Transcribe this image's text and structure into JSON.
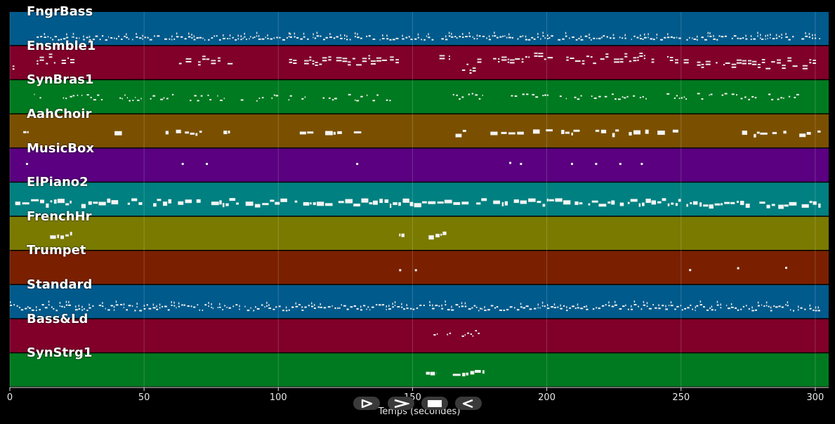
{
  "timeline": {
    "xlabel": "Temps (secondes)",
    "x_max": 305,
    "ticks": [
      {
        "value": 0,
        "label": "0"
      },
      {
        "value": 50,
        "label": "50"
      },
      {
        "value": 100,
        "label": "100"
      },
      {
        "value": 150,
        "label": "150"
      },
      {
        "value": 200,
        "label": "200"
      },
      {
        "value": 250,
        "label": "250"
      },
      {
        "value": 300,
        "label": "300"
      }
    ]
  },
  "tracks": [
    {
      "name": "FngrBass",
      "color": "#005a8c",
      "segments": [
        [
          10,
          250,
          0.7,
          0.02
        ],
        [
          252,
          302,
          0.7,
          0.02
        ]
      ],
      "density": 0.9,
      "kind": "dense"
    },
    {
      "name": "Ensmble1",
      "color": "#80002a",
      "segments": [
        [
          1,
          3,
          0.45,
          0.08
        ],
        [
          10,
          25,
          0.38,
          0.04
        ],
        [
          63,
          83,
          0.38,
          0.04
        ],
        [
          104,
          145,
          0.4,
          0.04
        ],
        [
          160,
          164,
          0.38,
          0.03
        ],
        [
          166,
          177,
          0.55,
          0.06
        ],
        [
          180,
          249,
          0.35,
          0.04
        ],
        [
          251,
          302,
          0.48,
          0.04
        ]
      ],
      "density": 0.75,
      "kind": "chord"
    },
    {
      "name": "SynBras1",
      "color": "#007a20",
      "segments": [
        [
          8,
          12,
          0.42,
          0.03
        ],
        [
          17,
          61,
          0.45,
          0.03
        ],
        [
          67,
          80,
          0.45,
          0.03
        ],
        [
          86,
          122,
          0.46,
          0.03
        ],
        [
          126,
          142,
          0.45,
          0.03
        ],
        [
          165,
          188,
          0.4,
          0.03
        ],
        [
          188,
          294,
          0.42,
          0.03
        ]
      ],
      "density": 0.6,
      "kind": "sparse"
    },
    {
      "name": "AahChoir",
      "color": "#7a5000",
      "segments": [
        [
          5,
          7,
          0.45,
          0.0
        ],
        [
          39,
          42,
          0.45,
          0.0
        ],
        [
          58,
          82,
          0.45,
          0.02
        ],
        [
          99,
          102,
          0.45,
          0.0
        ],
        [
          108,
          142,
          0.45,
          0.02
        ],
        [
          166,
          172,
          0.45,
          0.03
        ],
        [
          179,
          249,
          0.45,
          0.02
        ],
        [
          270,
          302,
          0.48,
          0.02
        ]
      ],
      "density": 0.6,
      "kind": "block"
    },
    {
      "name": "MusicBox",
      "color": "#5a0080",
      "segments": [
        [
          6,
          8,
          0.38,
          0.0
        ],
        [
          64,
          65,
          0.38,
          0.0
        ],
        [
          73,
          74,
          0.38,
          0.0
        ],
        [
          129,
          130,
          0.38,
          0.0
        ],
        [
          186,
          187,
          0.35,
          0.0
        ],
        [
          190,
          192,
          0.38,
          0.0
        ],
        [
          209,
          210,
          0.38,
          0.0
        ],
        [
          218,
          219,
          0.38,
          0.0
        ],
        [
          227,
          228,
          0.38,
          0.0
        ],
        [
          235,
          236,
          0.38,
          0.0
        ]
      ],
      "density": 1,
      "kind": "dot"
    },
    {
      "name": "ElPiano2",
      "color": "#008080",
      "segments": [
        [
          2,
          250,
          0.5,
          0.03
        ],
        [
          252,
          302,
          0.55,
          0.02
        ]
      ],
      "density": 0.85,
      "kind": "block"
    },
    {
      "name": "FrenchHr",
      "color": "#7a7a00",
      "segments": [
        [
          15,
          25,
          0.45,
          0.03
        ],
        [
          145,
          147,
          0.45,
          0.0
        ],
        [
          156,
          163,
          0.45,
          0.02
        ]
      ],
      "density": 0.8,
      "kind": "block"
    },
    {
      "name": "Trumpet",
      "color": "#7a2000",
      "segments": [
        [
          145,
          155,
          0.5,
          0.03
        ],
        [
          253,
          300,
          0.45,
          0.0
        ]
      ],
      "density": 0.35,
      "kind": "dot"
    },
    {
      "name": "Standard",
      "color": "#005a8c",
      "segments": [
        [
          0,
          302,
          0.6,
          0.03
        ]
      ],
      "density": 0.95,
      "kind": "dense"
    },
    {
      "name": "Bass&Ld",
      "color": "#80002a",
      "segments": [
        [
          155,
          175,
          0.35,
          0.03
        ]
      ],
      "density": 0.6,
      "kind": "sparse"
    },
    {
      "name": "SynStrg1",
      "color": "#007a20",
      "segments": [
        [
          155,
          159,
          0.5,
          0.0
        ],
        [
          165,
          177,
          0.5,
          0.02
        ]
      ],
      "density": 0.8,
      "kind": "block"
    }
  ],
  "controls": [
    {
      "name": "play-button",
      "icon": "play-outline-icon"
    },
    {
      "name": "forward-button",
      "icon": "forward-chevron-icon"
    },
    {
      "name": "stop-button",
      "icon": "stop-icon"
    },
    {
      "name": "rewind-button",
      "icon": "rewind-icon"
    }
  ]
}
